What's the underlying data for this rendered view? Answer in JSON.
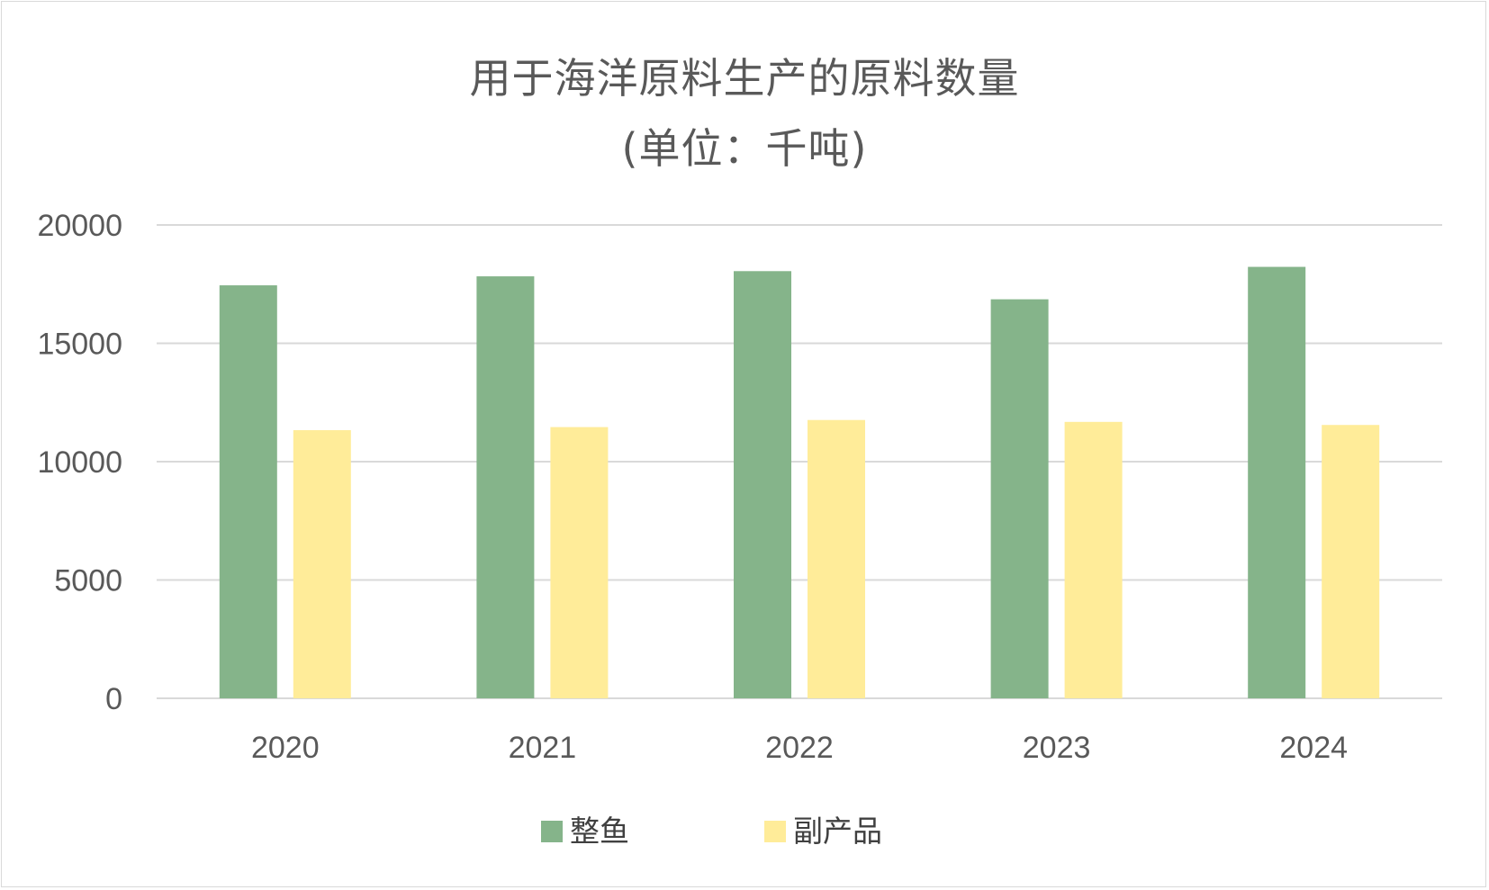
{
  "chart_data": {
    "type": "bar",
    "title": "用于海洋原料生产的原料数量",
    "subtitle": "(单位：千吨)",
    "xlabel": "",
    "ylabel": "",
    "categories": [
      "2020",
      "2021",
      "2022",
      "2023",
      "2024"
    ],
    "series": [
      {
        "name": "整鱼",
        "color": "#85b48a",
        "values": [
          17450,
          17830,
          18050,
          16860,
          18230
        ]
      },
      {
        "name": "副产品",
        "color": "#ffec99",
        "values": [
          11330,
          11460,
          11760,
          11680,
          11550
        ]
      }
    ],
    "ylim": [
      0,
      20000
    ],
    "yticks": [
      "0",
      "5000",
      "10000",
      "15000",
      "20000"
    ],
    "grid": true,
    "legend_position": "bottom",
    "gridline_color": "#d9d9d9"
  }
}
